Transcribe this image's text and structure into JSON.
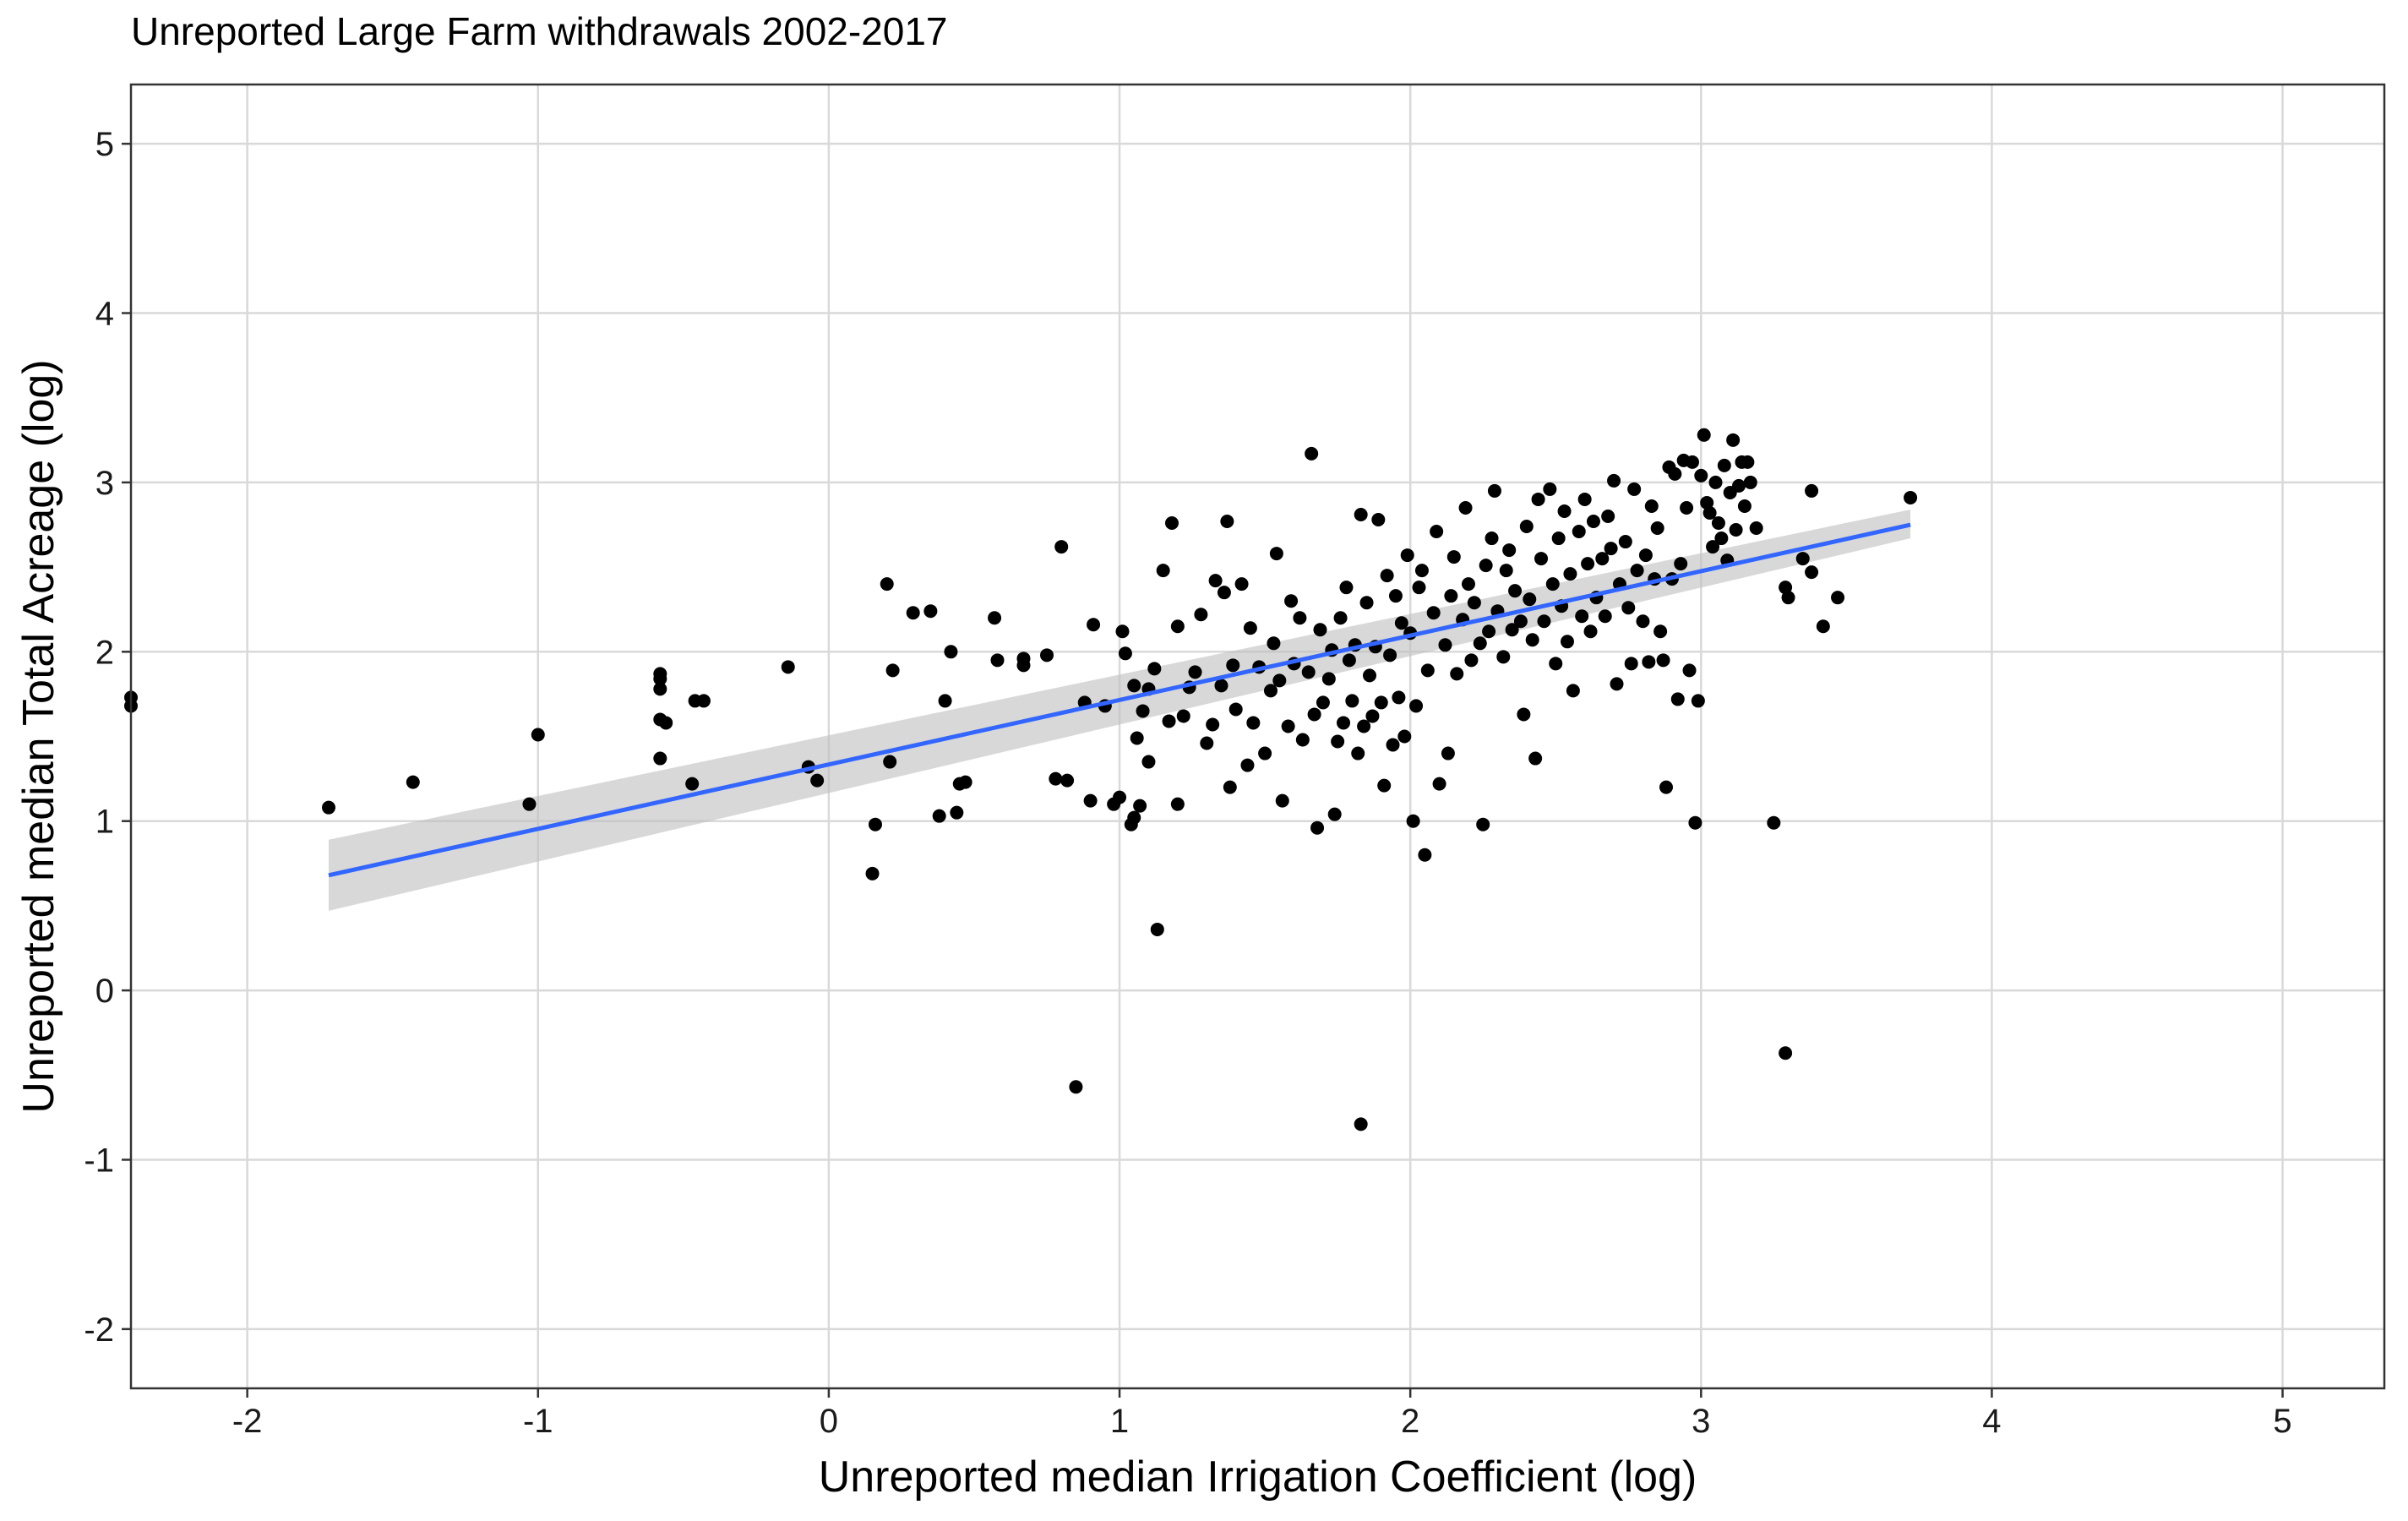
{
  "chart_data": {
    "type": "scatter",
    "title": "Unreported Large Farm withdrawals 2002-2017",
    "xlabel": "Unreported median Irrigation Coefficient (log)",
    "ylabel": "Unreported median Total Acreage (log)",
    "xlim": [
      -2.4,
      5.35
    ],
    "ylim": [
      -2.35,
      5.35
    ],
    "x_ticks": [
      -2,
      -1,
      0,
      1,
      2,
      3,
      4,
      5
    ],
    "y_ticks": [
      -2,
      -1,
      0,
      1,
      2,
      3,
      4,
      5
    ],
    "x_tick_labels": [
      "-2",
      "-1",
      "0",
      "1",
      "2",
      "3",
      "4",
      "5"
    ],
    "y_tick_labels": [
      "-2",
      "-1",
      "0",
      "1",
      "2",
      "3",
      "4",
      "5"
    ],
    "grid": true,
    "point_color": "#000000",
    "points": [
      [
        -2.4,
        1.73
      ],
      [
        -2.4,
        1.68
      ],
      [
        -1.72,
        1.08
      ],
      [
        -1.43,
        1.23
      ],
      [
        -1.03,
        1.1
      ],
      [
        -1.0,
        1.51
      ],
      [
        -0.58,
        1.87
      ],
      [
        -0.58,
        1.84
      ],
      [
        -0.58,
        1.78
      ],
      [
        -0.58,
        1.6
      ],
      [
        -0.56,
        1.58
      ],
      [
        -0.58,
        1.37
      ],
      [
        -0.46,
        1.71
      ],
      [
        -0.43,
        1.71
      ],
      [
        -0.47,
        1.22
      ],
      [
        -0.14,
        1.91
      ],
      [
        -0.07,
        1.32
      ],
      [
        -0.04,
        1.24
      ],
      [
        0.15,
        0.69
      ],
      [
        0.16,
        0.98
      ],
      [
        0.2,
        2.4
      ],
      [
        0.21,
        1.35
      ],
      [
        0.22,
        1.89
      ],
      [
        0.29,
        2.23
      ],
      [
        0.35,
        2.24
      ],
      [
        0.38,
        1.03
      ],
      [
        0.4,
        1.71
      ],
      [
        0.42,
        2.0
      ],
      [
        0.44,
        1.05
      ],
      [
        0.45,
        1.22
      ],
      [
        0.47,
        1.23
      ],
      [
        0.57,
        2.2
      ],
      [
        0.58,
        1.95
      ],
      [
        0.67,
        1.96
      ],
      [
        0.67,
        1.92
      ],
      [
        0.75,
        1.98
      ],
      [
        0.78,
        1.25
      ],
      [
        0.8,
        2.62
      ],
      [
        0.82,
        1.24
      ],
      [
        0.85,
        -0.57
      ],
      [
        0.88,
        1.7
      ],
      [
        0.9,
        1.12
      ],
      [
        0.91,
        2.16
      ],
      [
        0.95,
        1.68
      ],
      [
        0.98,
        1.1
      ],
      [
        1.0,
        1.14
      ],
      [
        1.01,
        2.12
      ],
      [
        1.02,
        1.99
      ],
      [
        1.04,
        0.98
      ],
      [
        1.05,
        1.8
      ],
      [
        1.05,
        1.02
      ],
      [
        1.06,
        1.49
      ],
      [
        1.07,
        1.09
      ],
      [
        1.08,
        1.65
      ],
      [
        1.1,
        1.35
      ],
      [
        1.1,
        1.78
      ],
      [
        1.12,
        1.9
      ],
      [
        1.13,
        0.36
      ],
      [
        1.15,
        2.48
      ],
      [
        1.17,
        1.59
      ],
      [
        1.18,
        2.76
      ],
      [
        1.2,
        1.1
      ],
      [
        1.2,
        2.15
      ],
      [
        1.22,
        1.62
      ],
      [
        1.24,
        1.79
      ],
      [
        1.26,
        1.88
      ],
      [
        1.28,
        2.22
      ],
      [
        1.3,
        1.46
      ],
      [
        1.32,
        1.57
      ],
      [
        1.33,
        2.42
      ],
      [
        1.35,
        1.8
      ],
      [
        1.36,
        2.35
      ],
      [
        1.37,
        2.77
      ],
      [
        1.38,
        1.2
      ],
      [
        1.39,
        1.92
      ],
      [
        1.4,
        1.66
      ],
      [
        1.42,
        2.4
      ],
      [
        1.44,
        1.33
      ],
      [
        1.45,
        2.14
      ],
      [
        1.46,
        1.58
      ],
      [
        1.48,
        1.91
      ],
      [
        1.5,
        1.4
      ],
      [
        1.52,
        1.77
      ],
      [
        1.53,
        2.05
      ],
      [
        1.54,
        2.58
      ],
      [
        1.55,
        1.83
      ],
      [
        1.56,
        1.12
      ],
      [
        1.58,
        1.56
      ],
      [
        1.59,
        2.3
      ],
      [
        1.6,
        1.93
      ],
      [
        1.62,
        2.2
      ],
      [
        1.63,
        1.48
      ],
      [
        1.65,
        1.88
      ],
      [
        1.66,
        3.17
      ],
      [
        1.67,
        1.63
      ],
      [
        1.68,
        0.96
      ],
      [
        1.69,
        2.13
      ],
      [
        1.7,
        1.7
      ],
      [
        1.72,
        1.84
      ],
      [
        1.73,
        2.01
      ],
      [
        1.74,
        1.04
      ],
      [
        1.75,
        1.47
      ],
      [
        1.76,
        2.2
      ],
      [
        1.77,
        1.58
      ],
      [
        1.78,
        2.38
      ],
      [
        1.79,
        1.95
      ],
      [
        1.8,
        1.71
      ],
      [
        1.81,
        2.04
      ],
      [
        1.82,
        1.4
      ],
      [
        1.83,
        -0.79
      ],
      [
        1.83,
        2.81
      ],
      [
        1.84,
        1.56
      ],
      [
        1.85,
        2.29
      ],
      [
        1.86,
        1.86
      ],
      [
        1.87,
        1.62
      ],
      [
        1.88,
        2.03
      ],
      [
        1.89,
        2.78
      ],
      [
        1.9,
        1.7
      ],
      [
        1.91,
        1.21
      ],
      [
        1.92,
        2.45
      ],
      [
        1.93,
        1.98
      ],
      [
        1.94,
        1.45
      ],
      [
        1.95,
        2.33
      ],
      [
        1.96,
        1.73
      ],
      [
        1.97,
        2.17
      ],
      [
        1.98,
        1.5
      ],
      [
        1.99,
        2.57
      ],
      [
        2.0,
        2.11
      ],
      [
        2.01,
        1.0
      ],
      [
        2.02,
        1.68
      ],
      [
        2.03,
        2.38
      ],
      [
        2.04,
        2.48
      ],
      [
        2.05,
        0.8
      ],
      [
        2.06,
        1.89
      ],
      [
        2.08,
        2.23
      ],
      [
        2.09,
        2.71
      ],
      [
        2.1,
        1.22
      ],
      [
        2.12,
        2.04
      ],
      [
        2.13,
        1.4
      ],
      [
        2.14,
        2.33
      ],
      [
        2.15,
        2.56
      ],
      [
        2.16,
        1.87
      ],
      [
        2.18,
        2.19
      ],
      [
        2.19,
        2.85
      ],
      [
        2.2,
        2.4
      ],
      [
        2.21,
        1.95
      ],
      [
        2.22,
        2.29
      ],
      [
        2.24,
        2.05
      ],
      [
        2.25,
        0.98
      ],
      [
        2.26,
        2.51
      ],
      [
        2.27,
        2.12
      ],
      [
        2.28,
        2.67
      ],
      [
        2.29,
        2.95
      ],
      [
        2.3,
        2.24
      ],
      [
        2.32,
        1.97
      ],
      [
        2.33,
        2.48
      ],
      [
        2.34,
        2.6
      ],
      [
        2.35,
        2.13
      ],
      [
        2.36,
        2.36
      ],
      [
        2.38,
        2.18
      ],
      [
        2.39,
        1.63
      ],
      [
        2.4,
        2.74
      ],
      [
        2.41,
        2.31
      ],
      [
        2.42,
        2.07
      ],
      [
        2.43,
        1.37
      ],
      [
        2.44,
        2.9
      ],
      [
        2.45,
        2.55
      ],
      [
        2.46,
        2.18
      ],
      [
        2.48,
        2.96
      ],
      [
        2.49,
        2.4
      ],
      [
        2.5,
        1.93
      ],
      [
        2.51,
        2.67
      ],
      [
        2.52,
        2.27
      ],
      [
        2.53,
        2.83
      ],
      [
        2.54,
        2.06
      ],
      [
        2.55,
        2.46
      ],
      [
        2.56,
        1.77
      ],
      [
        2.58,
        2.71
      ],
      [
        2.59,
        2.21
      ],
      [
        2.6,
        2.9
      ],
      [
        2.61,
        2.52
      ],
      [
        2.62,
        2.12
      ],
      [
        2.63,
        2.77
      ],
      [
        2.64,
        2.32
      ],
      [
        2.66,
        2.55
      ],
      [
        2.67,
        2.21
      ],
      [
        2.68,
        2.8
      ],
      [
        2.69,
        2.61
      ],
      [
        2.7,
        3.01
      ],
      [
        2.71,
        1.81
      ],
      [
        2.72,
        2.4
      ],
      [
        2.74,
        2.65
      ],
      [
        2.75,
        2.26
      ],
      [
        2.76,
        1.93
      ],
      [
        2.77,
        2.96
      ],
      [
        2.78,
        2.48
      ],
      [
        2.8,
        2.18
      ],
      [
        2.81,
        2.57
      ],
      [
        2.82,
        1.94
      ],
      [
        2.83,
        2.86
      ],
      [
        2.84,
        2.43
      ],
      [
        2.85,
        2.73
      ],
      [
        2.86,
        2.12
      ],
      [
        2.87,
        1.95
      ],
      [
        2.88,
        1.2
      ],
      [
        2.89,
        3.09
      ],
      [
        2.9,
        2.43
      ],
      [
        2.91,
        3.05
      ],
      [
        2.92,
        1.72
      ],
      [
        2.93,
        2.52
      ],
      [
        2.94,
        3.13
      ],
      [
        2.95,
        2.85
      ],
      [
        2.96,
        1.89
      ],
      [
        2.97,
        3.12
      ],
      [
        2.98,
        0.99
      ],
      [
        2.99,
        1.71
      ],
      [
        3.0,
        3.04
      ],
      [
        3.01,
        3.28
      ],
      [
        3.02,
        2.88
      ],
      [
        3.03,
        2.82
      ],
      [
        3.04,
        2.62
      ],
      [
        3.05,
        3.0
      ],
      [
        3.06,
        2.76
      ],
      [
        3.07,
        2.67
      ],
      [
        3.08,
        3.1
      ],
      [
        3.09,
        2.54
      ],
      [
        3.1,
        2.94
      ],
      [
        3.11,
        3.25
      ],
      [
        3.12,
        2.72
      ],
      [
        3.13,
        2.98
      ],
      [
        3.14,
        3.12
      ],
      [
        3.15,
        2.86
      ],
      [
        3.16,
        3.12
      ],
      [
        3.17,
        3.0
      ],
      [
        3.19,
        2.73
      ],
      [
        3.25,
        0.99
      ],
      [
        3.29,
        -0.37
      ],
      [
        3.29,
        2.38
      ],
      [
        3.3,
        2.32
      ],
      [
        3.35,
        2.55
      ],
      [
        3.38,
        2.47
      ],
      [
        3.38,
        2.95
      ],
      [
        3.42,
        2.15
      ],
      [
        3.47,
        2.32
      ],
      [
        3.72,
        2.91
      ]
    ],
    "trend_line": {
      "x": [
        -1.72,
        3.72
      ],
      "y": [
        0.68,
        2.75
      ],
      "color": "#3366FF",
      "ci_lower": [
        0.47,
        2.67
      ],
      "ci_upper": [
        0.89,
        2.84
      ],
      "ci_color": "#BEBEBE"
    }
  }
}
